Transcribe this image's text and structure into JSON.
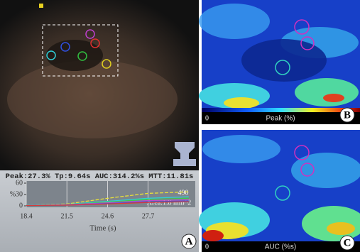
{
  "panel_a": {
    "label": "A",
    "stats": "Peak:27.3% Tp:9.64s AUC:314.2%s MTT:11.81s",
    "curve_chart": {
      "type": "line",
      "y_label": "%",
      "x_label": "Time (s)",
      "x": [
        18.4,
        21.5,
        24.6,
        27.7,
        30.8
      ],
      "xlim": [
        18.4,
        31.3
      ],
      "xticks": [
        18.4,
        21.5,
        24.6,
        27.7
      ],
      "ylim": [
        0,
        60
      ],
      "yticks": [
        0,
        30,
        60
      ],
      "series": [
        {
          "color": "#e8e23a",
          "values": [
            2,
            5,
            20,
            33,
            37
          ]
        },
        {
          "color": "#2fd0d6",
          "values": [
            2,
            4,
            12,
            20,
            24
          ]
        },
        {
          "color": "#3cc94a",
          "values": [
            1,
            3,
            10,
            17,
            20
          ]
        },
        {
          "color": "#c04ad0",
          "values": [
            1,
            3,
            8,
            14,
            16
          ]
        },
        {
          "color": "#3a52d8",
          "values": [
            1,
            2,
            6,
            11,
            13
          ]
        },
        {
          "color": "#d83a3a",
          "values": [
            1,
            2,
            5,
            9,
            11
          ]
        }
      ],
      "annotations": [
        "490",
        "Area:1.8 mm^2"
      ]
    }
  },
  "panel_b": {
    "label": "B",
    "scale_min": "0",
    "scale_title": "Peak (%)"
  },
  "panel_c": {
    "label": "C",
    "scale_min": "0",
    "scale_title": "AUC (%s)"
  }
}
